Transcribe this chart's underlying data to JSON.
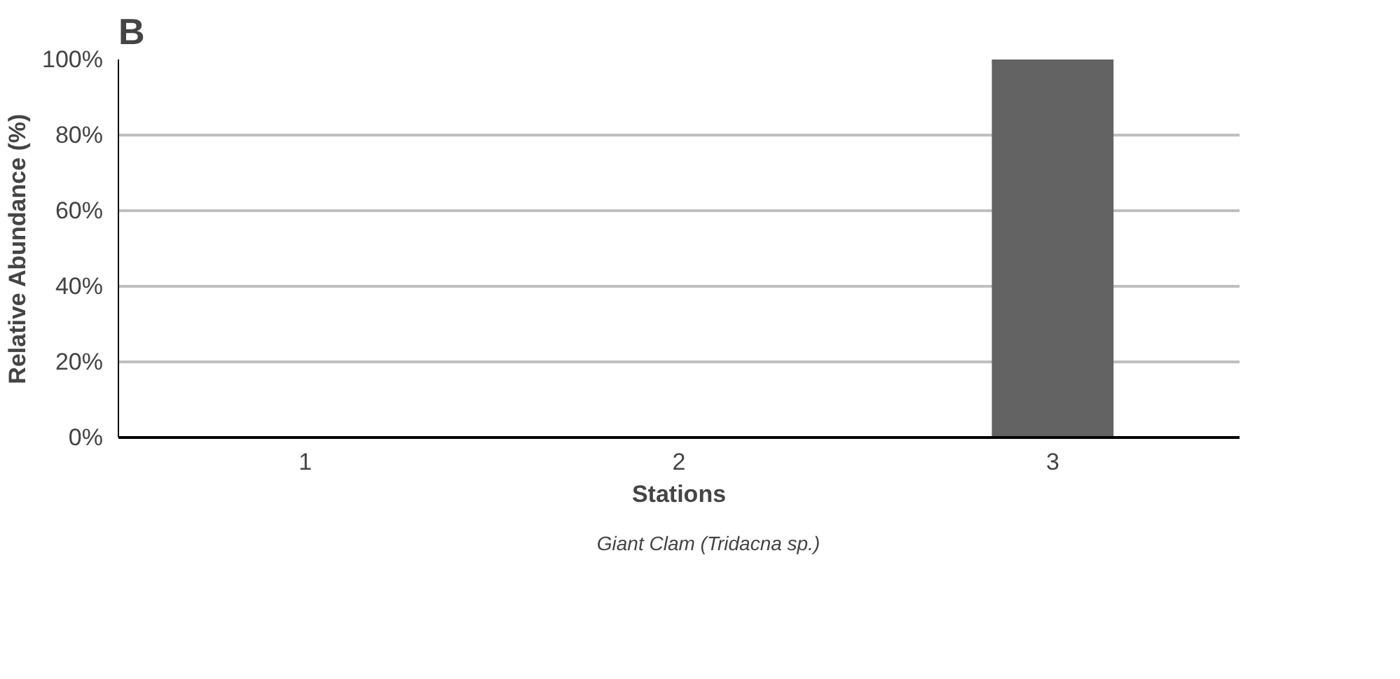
{
  "chart_data": {
    "type": "bar",
    "title": "B",
    "xlabel": "Stations",
    "ylabel": "Relative Abundance (%)",
    "categories": [
      "1",
      "2",
      "3"
    ],
    "series": [
      {
        "name": "Giant Clam (Tridacna sp.)",
        "color": "#636363",
        "values": [
          0,
          0,
          100
        ]
      }
    ],
    "ylim": [
      0,
      100
    ],
    "yticks": [
      {
        "value": 0,
        "label": "0%"
      },
      {
        "value": 20,
        "label": "20%"
      },
      {
        "value": 40,
        "label": "40%"
      },
      {
        "value": 60,
        "label": "60%"
      },
      {
        "value": 80,
        "label": "80%"
      },
      {
        "value": 100,
        "label": "100%"
      }
    ],
    "grid": "y",
    "legend": "bottom"
  }
}
